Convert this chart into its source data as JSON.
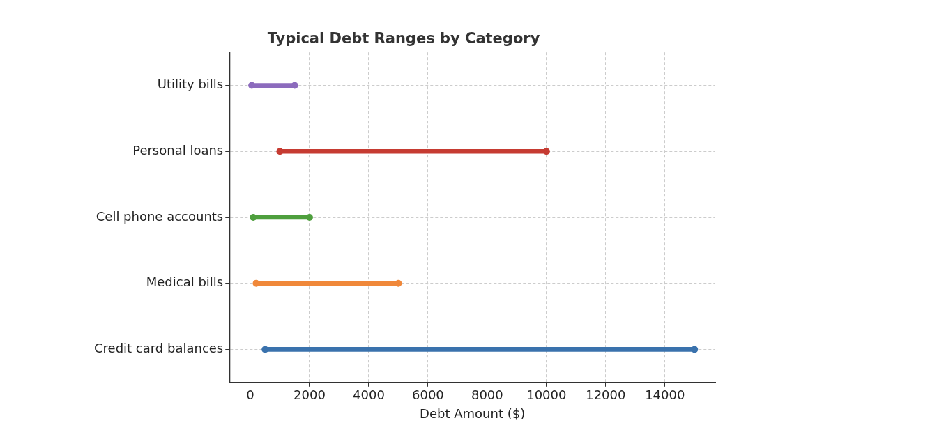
{
  "chart_data": {
    "type": "bar",
    "orientation": "horizontal",
    "title": "Typical Debt Ranges by Category",
    "xlabel": "Debt Amount ($)",
    "categories": [
      "Utility bills",
      "Personal loans",
      "Cell phone accounts",
      "Medical bills",
      "Credit card balances"
    ],
    "series": [
      {
        "colors": [
          "#8c6bbd",
          "#c63b32",
          "#4e9f3d",
          "#f0883a",
          "#3a72ad"
        ],
        "base": [
          50,
          1000,
          100,
          200,
          500
        ],
        "values": [
          1450,
          9000,
          1900,
          4800,
          14500
        ]
      },
      {
        "type": "scatter",
        "x": [
          "Utility bills",
          "Personal loans",
          "Cell phone accounts",
          "Medical bills",
          "Credit card balances"
        ],
        "colors": [
          "#8c6bbd",
          "#c63b32",
          "#4e9f3d",
          "#f0883a",
          "#3a72ad"
        ],
        "values": [
          50,
          1000,
          100,
          200,
          500
        ]
      },
      {
        "type": "scatter",
        "x": [
          "Utility bills",
          "Personal loans",
          "Cell phone accounts",
          "Medical bills",
          "Credit card balances"
        ],
        "colors": [
          "#8c6bbd",
          "#c63b32",
          "#4e9f3d",
          "#f0883a",
          "#3a72ad"
        ],
        "values": [
          1500,
          10000,
          2000,
          5000,
          15000
        ]
      }
    ],
    "xlim": [
      -700,
      15700
    ],
    "xticks": [
      0,
      2000,
      4000,
      6000,
      8000,
      10000,
      12000,
      14000
    ],
    "grid": true,
    "marker": "circle"
  }
}
